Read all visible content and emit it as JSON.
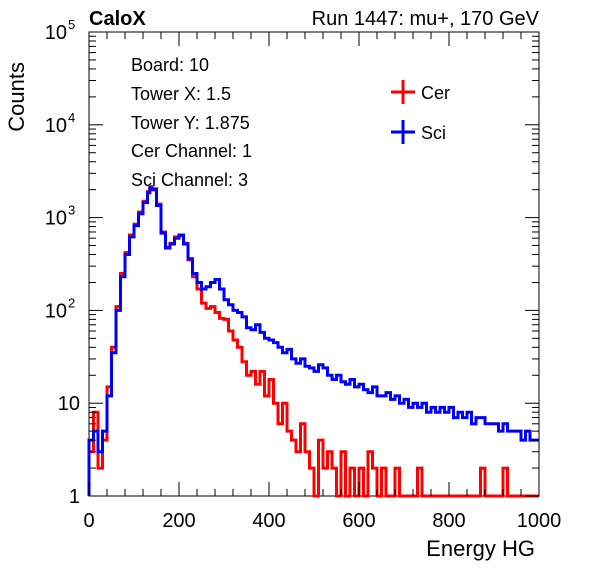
{
  "chart_data": {
    "type": "line",
    "title_left": "CaloX",
    "title_right": "Run 1447: mu+, 170 GeV",
    "xlabel": "Energy HG",
    "ylabel": "Counts",
    "xlim": [
      0,
      1000
    ],
    "ylim": [
      1,
      100000
    ],
    "y_scale": "log",
    "grid": false,
    "legend_position": "top-right",
    "x_ticks": [
      {
        "value": 0,
        "label": "0"
      },
      {
        "value": 200,
        "label": "200"
      },
      {
        "value": 400,
        "label": "400"
      },
      {
        "value": 600,
        "label": "600"
      },
      {
        "value": 800,
        "label": "800"
      },
      {
        "value": 1000,
        "label": "1000"
      }
    ],
    "y_ticks": [
      {
        "value": 1,
        "base": "1",
        "exp": ""
      },
      {
        "value": 10,
        "base": "10",
        "exp": ""
      },
      {
        "value": 100,
        "base": "10",
        "exp": "2"
      },
      {
        "value": 1000,
        "base": "10",
        "exp": "3"
      },
      {
        "value": 10000,
        "base": "10",
        "exp": "4"
      },
      {
        "value": 100000,
        "base": "10",
        "exp": "5"
      }
    ],
    "info": [
      "Board: 10",
      "Tower X: 1.5",
      "Tower Y: 1.875",
      "Cer Channel: 1",
      "Sci Channel: 3"
    ],
    "series": [
      {
        "name": "Cer",
        "color": "#ff0000",
        "points": [
          [
            0,
            3
          ],
          [
            10,
            8
          ],
          [
            20,
            2
          ],
          [
            30,
            4
          ],
          [
            40,
            15
          ],
          [
            50,
            40
          ],
          [
            60,
            110
          ],
          [
            70,
            250
          ],
          [
            80,
            420
          ],
          [
            90,
            650
          ],
          [
            100,
            850
          ],
          [
            110,
            1150
          ],
          [
            120,
            1500
          ],
          [
            130,
            1900
          ],
          [
            135,
            2150
          ],
          [
            140,
            2050
          ],
          [
            150,
            1400
          ],
          [
            160,
            700
          ],
          [
            170,
            480
          ],
          [
            180,
            530
          ],
          [
            190,
            620
          ],
          [
            200,
            640
          ],
          [
            210,
            530
          ],
          [
            220,
            350
          ],
          [
            230,
            230
          ],
          [
            240,
            170
          ],
          [
            250,
            120
          ],
          [
            260,
            105
          ],
          [
            270,
            110
          ],
          [
            280,
            95
          ],
          [
            290,
            82
          ],
          [
            300,
            80
          ],
          [
            310,
            60
          ],
          [
            320,
            48
          ],
          [
            330,
            40
          ],
          [
            340,
            28
          ],
          [
            350,
            20
          ],
          [
            360,
            22
          ],
          [
            370,
            16
          ],
          [
            380,
            22
          ],
          [
            390,
            12
          ],
          [
            400,
            18
          ],
          [
            410,
            10
          ],
          [
            420,
            6
          ],
          [
            430,
            10
          ],
          [
            440,
            5
          ],
          [
            450,
            4
          ],
          [
            460,
            3
          ],
          [
            470,
            6
          ],
          [
            480,
            3
          ],
          [
            490,
            2
          ],
          [
            500,
            1
          ],
          [
            510,
            4
          ],
          [
            520,
            2
          ],
          [
            530,
            3
          ],
          [
            540,
            2
          ],
          [
            550,
            1
          ],
          [
            560,
            3
          ],
          [
            570,
            1
          ],
          [
            580,
            2
          ],
          [
            590,
            1
          ],
          [
            600,
            2
          ],
          [
            610,
            1
          ],
          [
            620,
            3
          ],
          [
            630,
            2
          ],
          [
            640,
            1
          ],
          [
            650,
            2
          ],
          [
            660,
            1
          ],
          [
            670,
            1
          ],
          [
            680,
            2
          ],
          [
            690,
            1
          ],
          [
            700,
            1
          ],
          [
            710,
            1
          ],
          [
            720,
            1
          ],
          [
            730,
            2
          ],
          [
            740,
            1
          ],
          [
            750,
            1
          ],
          [
            760,
            1
          ],
          [
            770,
            1
          ],
          [
            780,
            1
          ],
          [
            790,
            1
          ],
          [
            800,
            1
          ],
          [
            810,
            1
          ],
          [
            820,
            1
          ],
          [
            830,
            1
          ],
          [
            840,
            1
          ],
          [
            850,
            1
          ],
          [
            860,
            1
          ],
          [
            870,
            2
          ],
          [
            880,
            1
          ],
          [
            890,
            1
          ],
          [
            900,
            1
          ],
          [
            910,
            1
          ],
          [
            920,
            2
          ],
          [
            930,
            1
          ],
          [
            940,
            1
          ],
          [
            950,
            1
          ],
          [
            960,
            1
          ],
          [
            970,
            1
          ],
          [
            980,
            1
          ],
          [
            990,
            1
          ]
        ]
      },
      {
        "name": "Sci",
        "color": "#0000ff",
        "points": [
          [
            0,
            4
          ],
          [
            10,
            5
          ],
          [
            20,
            3
          ],
          [
            30,
            5
          ],
          [
            40,
            12
          ],
          [
            50,
            35
          ],
          [
            60,
            100
          ],
          [
            70,
            230
          ],
          [
            80,
            400
          ],
          [
            90,
            620
          ],
          [
            100,
            820
          ],
          [
            110,
            1100
          ],
          [
            120,
            1450
          ],
          [
            130,
            1850
          ],
          [
            135,
            2100
          ],
          [
            140,
            2000
          ],
          [
            150,
            1350
          ],
          [
            160,
            680
          ],
          [
            170,
            470
          ],
          [
            180,
            520
          ],
          [
            190,
            600
          ],
          [
            200,
            650
          ],
          [
            210,
            520
          ],
          [
            220,
            360
          ],
          [
            230,
            250
          ],
          [
            240,
            200
          ],
          [
            250,
            170
          ],
          [
            260,
            180
          ],
          [
            270,
            200
          ],
          [
            280,
            215
          ],
          [
            290,
            170
          ],
          [
            300,
            130
          ],
          [
            310,
            115
          ],
          [
            320,
            100
          ],
          [
            330,
            95
          ],
          [
            340,
            85
          ],
          [
            350,
            65
          ],
          [
            360,
            62
          ],
          [
            370,
            70
          ],
          [
            380,
            58
          ],
          [
            390,
            50
          ],
          [
            400,
            48
          ],
          [
            410,
            45
          ],
          [
            420,
            40
          ],
          [
            430,
            35
          ],
          [
            440,
            38
          ],
          [
            450,
            30
          ],
          [
            460,
            27
          ],
          [
            470,
            30
          ],
          [
            480,
            25
          ],
          [
            490,
            24
          ],
          [
            500,
            22
          ],
          [
            510,
            26
          ],
          [
            520,
            24
          ],
          [
            530,
            20
          ],
          [
            540,
            18
          ],
          [
            550,
            20
          ],
          [
            560,
            17
          ],
          [
            570,
            16
          ],
          [
            580,
            18
          ],
          [
            590,
            15
          ],
          [
            600,
            16
          ],
          [
            610,
            14
          ],
          [
            620,
            13
          ],
          [
            630,
            15
          ],
          [
            640,
            12
          ],
          [
            650,
            12
          ],
          [
            660,
            13
          ],
          [
            670,
            11
          ],
          [
            680,
            12
          ],
          [
            690,
            10
          ],
          [
            700,
            11
          ],
          [
            710,
            9
          ],
          [
            720,
            10
          ],
          [
            730,
            9
          ],
          [
            740,
            10
          ],
          [
            750,
            8
          ],
          [
            760,
            9
          ],
          [
            770,
            8
          ],
          [
            780,
            9
          ],
          [
            790,
            8
          ],
          [
            800,
            9
          ],
          [
            810,
            7
          ],
          [
            820,
            8
          ],
          [
            830,
            7
          ],
          [
            840,
            8
          ],
          [
            850,
            6
          ],
          [
            860,
            7
          ],
          [
            870,
            7
          ],
          [
            880,
            6
          ],
          [
            890,
            6
          ],
          [
            900,
            6
          ],
          [
            910,
            5
          ],
          [
            920,
            6
          ],
          [
            930,
            5
          ],
          [
            940,
            5
          ],
          [
            950,
            5
          ],
          [
            960,
            4
          ],
          [
            970,
            5
          ],
          [
            980,
            4
          ],
          [
            990,
            4
          ]
        ]
      }
    ]
  }
}
